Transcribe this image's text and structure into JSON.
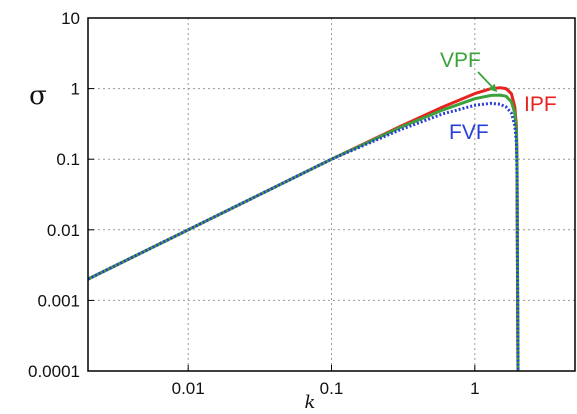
{
  "chart_data": {
    "type": "line",
    "xscale": "log",
    "yscale": "log",
    "xlim": [
      0.002,
      5
    ],
    "ylim": [
      0.0001,
      10
    ],
    "x_ticks": [
      0.01,
      0.1,
      1
    ],
    "x_tick_labels": [
      "0.01",
      "0.1",
      "1"
    ],
    "y_ticks": [
      0.0001,
      0.001,
      0.01,
      0.1,
      1,
      10
    ],
    "y_tick_labels": [
      "0.0001",
      "0.001",
      "0.01",
      "0.1",
      "1",
      "10"
    ],
    "xlabel": "k",
    "ylabel": "σ",
    "grid": true,
    "series": [
      {
        "name": "IPF",
        "color": "#e8231f",
        "line_style": "solid",
        "x": [
          0.002,
          0.01,
          0.1,
          0.3,
          0.6,
          1.0,
          1.3,
          1.5,
          1.65,
          1.8,
          1.9,
          1.95,
          1.97,
          1.98,
          2.0
        ],
        "y": [
          0.002,
          0.01,
          0.1,
          0.29,
          0.55,
          0.85,
          1.0,
          1.03,
          1.0,
          0.85,
          0.55,
          0.3,
          0.1,
          0.01,
          0.0001
        ]
      },
      {
        "name": "VPF",
        "color": "#3ca33c",
        "line_style": "solid",
        "x": [
          0.002,
          0.01,
          0.1,
          0.3,
          0.6,
          1.0,
          1.3,
          1.5,
          1.65,
          1.8,
          1.9,
          1.95,
          1.97,
          1.98,
          2.0
        ],
        "y": [
          0.002,
          0.01,
          0.1,
          0.28,
          0.5,
          0.72,
          0.8,
          0.81,
          0.78,
          0.65,
          0.45,
          0.25,
          0.09,
          0.01,
          0.0001
        ]
      },
      {
        "name": "FVF",
        "color": "#2a3fd6",
        "line_style": "dotted",
        "x": [
          0.002,
          0.01,
          0.1,
          0.3,
          0.6,
          1.0,
          1.3,
          1.5,
          1.65,
          1.8,
          1.9,
          1.95,
          1.97,
          1.98,
          2.0
        ],
        "y": [
          0.002,
          0.01,
          0.1,
          0.26,
          0.44,
          0.58,
          0.62,
          0.6,
          0.55,
          0.45,
          0.3,
          0.17,
          0.06,
          0.008,
          0.0001
        ]
      }
    ],
    "annotations": [
      {
        "text": "VPF",
        "color": "#3ca33c",
        "arrow_to": {
          "x": 1.4,
          "y": 0.82
        }
      },
      {
        "text": "IPF",
        "color": "#e8231f"
      },
      {
        "text": "FVF",
        "color": "#2a3fd6"
      }
    ]
  }
}
